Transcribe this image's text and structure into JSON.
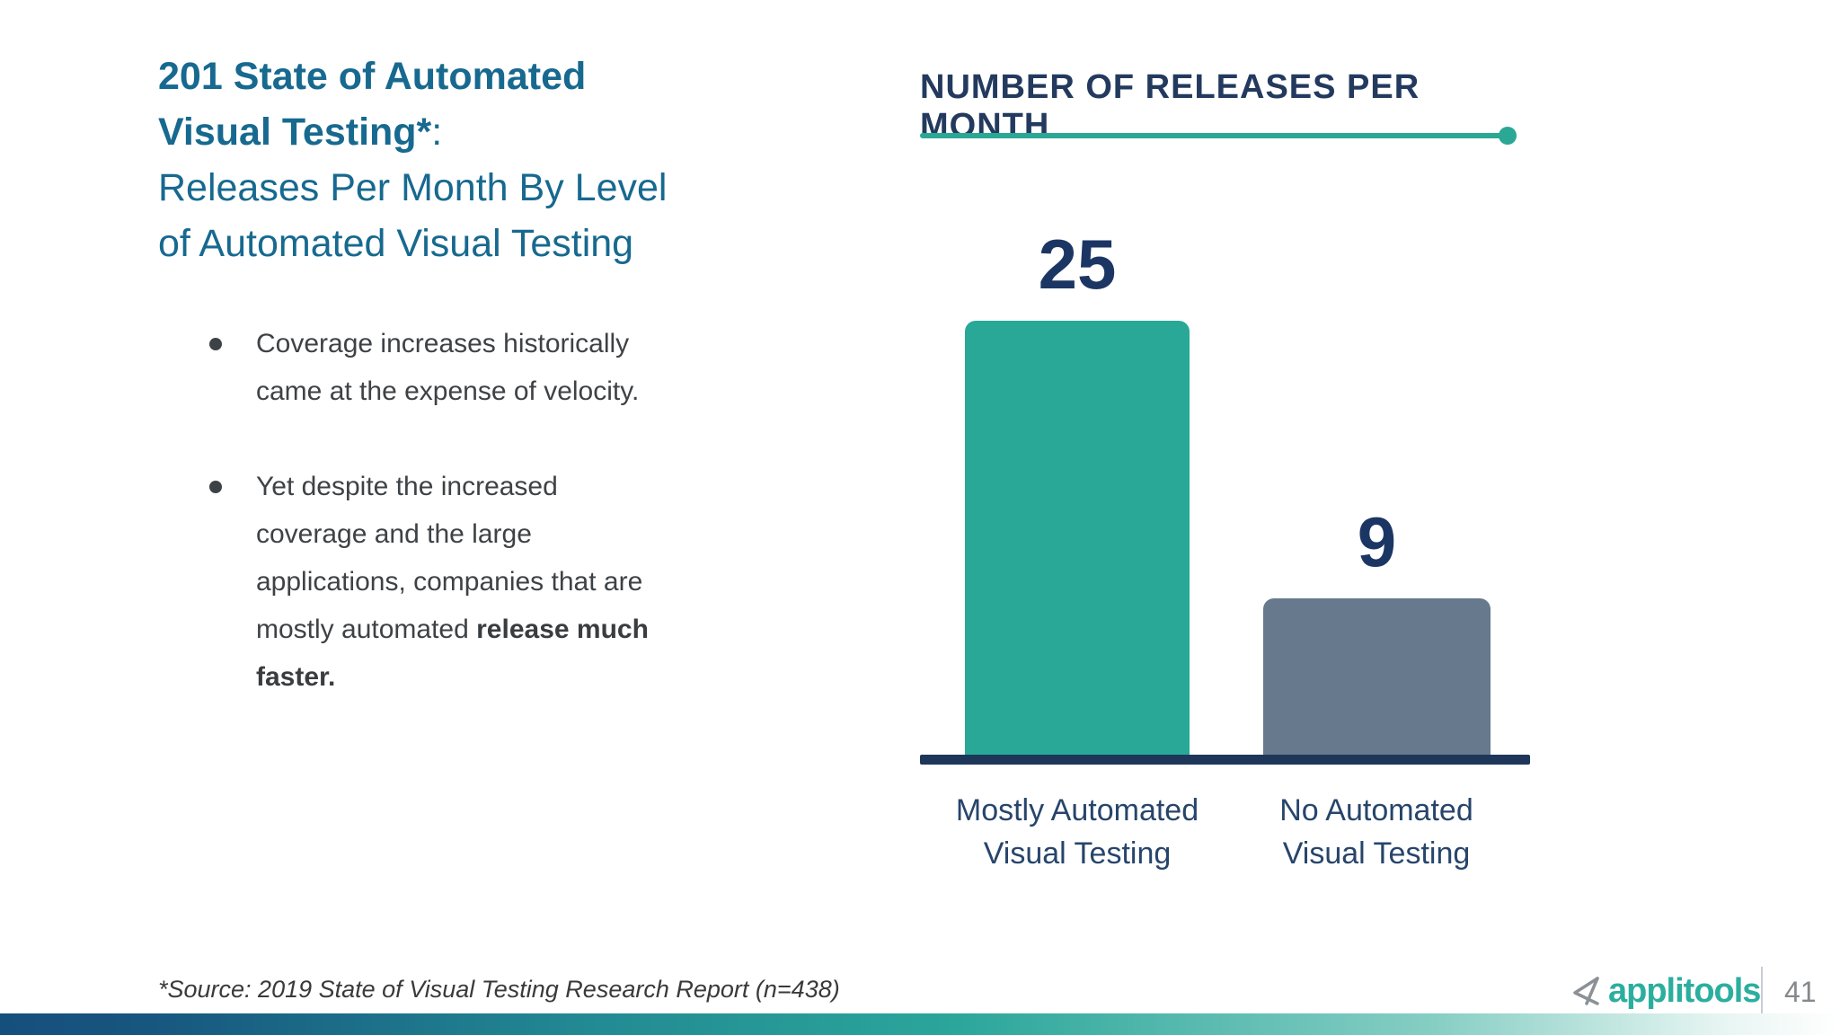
{
  "slide_title": {
    "bold_lines": [
      "201 State of Automated",
      "Visual Testing*"
    ],
    "suffix": ":",
    "regular_lines": [
      "Releases Per Month By Level",
      "of Automated Visual Testing"
    ]
  },
  "bullets": [
    {
      "lines": [
        [
          {
            "t": "Coverage increases historically came at the expense of velocity.",
            "b": false
          }
        ]
      ]
    },
    {
      "lines": [
        [
          {
            "t": "Yet despite the increased coverage and the large applications, companies that are mostly automated ",
            "b": false
          },
          {
            "t": "release much faster.",
            "b": true
          }
        ]
      ]
    }
  ],
  "chart_data": {
    "type": "bar",
    "title": "NUMBER OF RELEASES PER MONTH",
    "categories": [
      "Mostly Automated Visual Testing",
      "No Automated Visual Testing"
    ],
    "values": [
      25,
      9
    ],
    "value_labels": [
      "25",
      "9"
    ],
    "ylim": [
      0,
      25
    ],
    "bar_colors": [
      "#29A898",
      "#66798D"
    ],
    "value_label_color": "#1C3664",
    "axis_color": "#1D3659",
    "grid": false,
    "legend": "none",
    "xlabel": "",
    "ylabel": ""
  },
  "footer": {
    "source": "*Source: 2019 State of Visual Testing Research Report (n=438)",
    "brand": "applitools",
    "page_number": "41"
  },
  "colors": {
    "title_blue": "#17698F",
    "body_gray": "#3F4245",
    "chart_navy": "#233A5E",
    "accent_teal": "#2BA795",
    "brand_teal": "#2CAE9E",
    "gradient_left": "#15507C",
    "gradient_mid": "#2BA69B",
    "gradient_right": "#FFFFFF"
  }
}
